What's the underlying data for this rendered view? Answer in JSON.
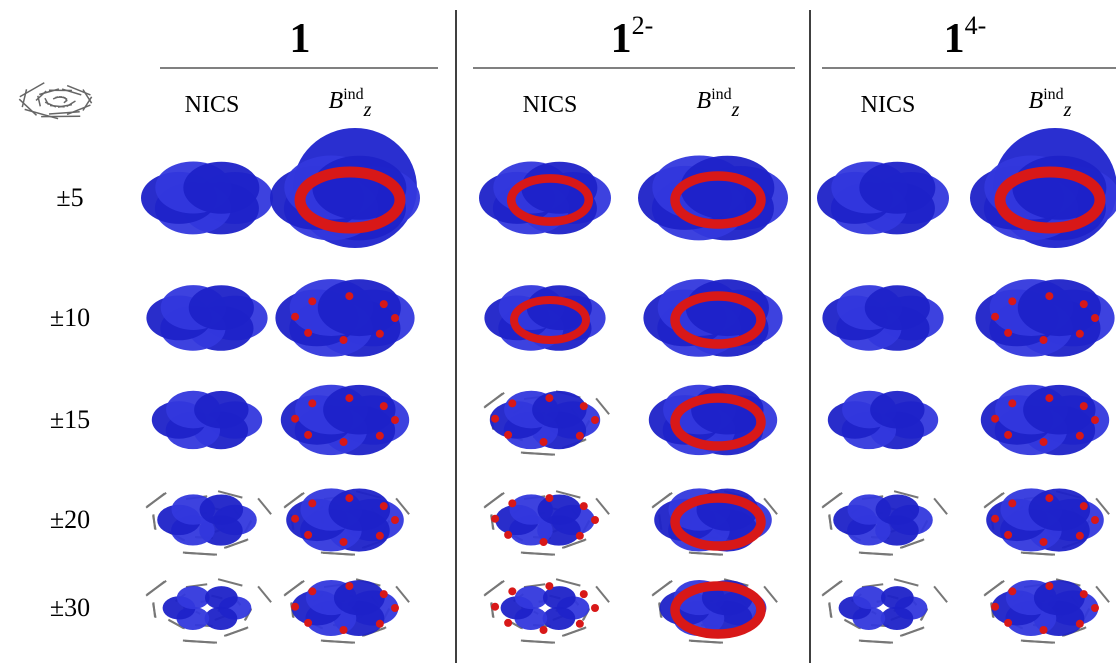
{
  "groups": [
    {
      "label": "1",
      "columns": [
        "NICS",
        {
          "base": "B",
          "superscript": "ind",
          "subscript": "z"
        }
      ]
    },
    {
      "label": "1",
      "superscript": "2-",
      "columns": [
        "NICS",
        {
          "base": "B",
          "superscript": "ind",
          "subscript": "z"
        }
      ]
    },
    {
      "label": "1",
      "superscript": "4-",
      "columns": [
        "NICS",
        {
          "base": "B",
          "superscript": "ind",
          "subscript": "z"
        }
      ]
    }
  ],
  "rows": [
    "±5",
    "±10",
    "±15",
    "±20",
    "±30"
  ]
}
